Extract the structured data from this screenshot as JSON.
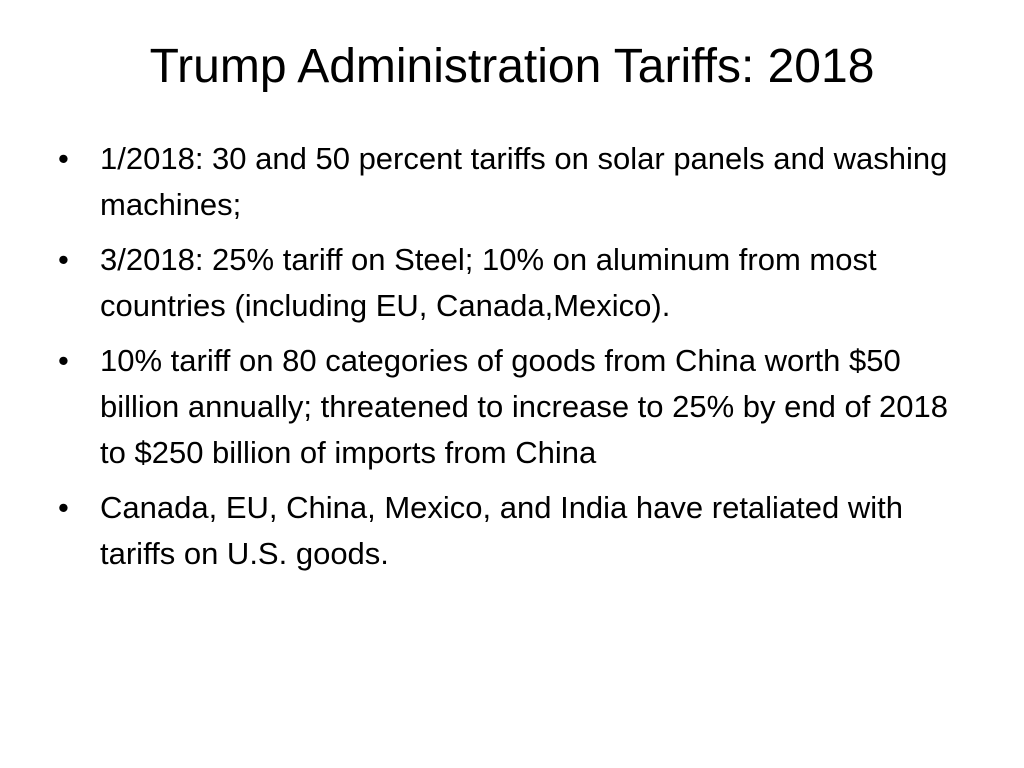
{
  "slide": {
    "title": "Trump Administration Tariffs: 2018",
    "bullet_symbol": "•",
    "bullets": [
      "1/2018: 30 and 50 percent tariffs on solar panels and washing machines;",
      "3/2018: 25% tariff on Steel;  10% on aluminum from most countries (including EU, Canada,Mexico).",
      "10% tariff on 80 categories of goods from China worth $50 billion annually; threatened to increase to 25% by end of 2018 to $250 billion of imports from China",
      "Canada, EU, China, Mexico, and India have retaliated with tariffs on U.S. goods."
    ]
  }
}
